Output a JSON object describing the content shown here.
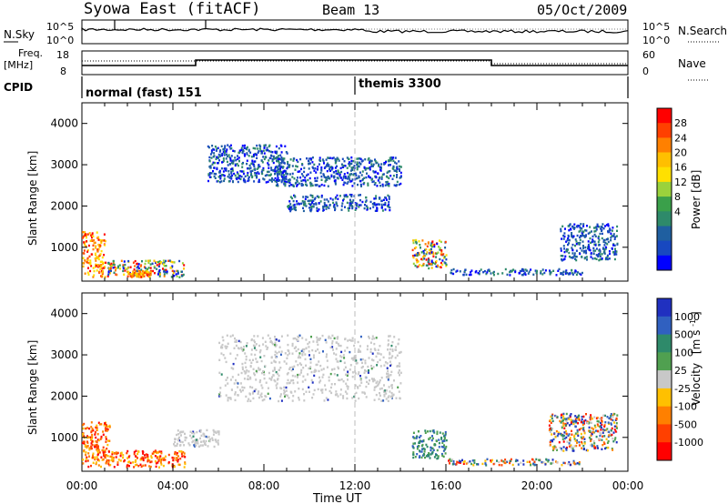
{
  "header": {
    "title": "Syowa East (fitACF)",
    "beam": "Beam 13",
    "date": "05/Oct/2009"
  },
  "noise_panel": {
    "left_label": "N.Sky",
    "right_label": "N.Search",
    "left_ticks": [
      "10^5",
      "10^0"
    ],
    "right_ticks": [
      "10^5",
      "10^0"
    ]
  },
  "freq_panel": {
    "left_label_1": "Freq.",
    "left_label_2": "[MHz]",
    "right_label": "Nave",
    "left_ticks": [
      "18",
      "8"
    ],
    "right_ticks": [
      "60",
      "0"
    ]
  },
  "cpid": {
    "label": "CPID",
    "programs": [
      {
        "name": "normal (fast) 151"
      },
      {
        "name": "themis 3300"
      }
    ]
  },
  "chart_data": [
    {
      "type": "heatmap",
      "ylabel": "Slant Range [km]",
      "xlabel": "Time UT",
      "xlim": [
        0,
        24
      ],
      "ylim": [
        180,
        4500
      ],
      "x_ticks": [
        "00:00",
        "04:00",
        "08:00",
        "12:00",
        "16:00",
        "20:00",
        "00:00"
      ],
      "y_ticks": [
        1000,
        2000,
        3000,
        4000
      ],
      "colorbar": {
        "label": "Power [dB]",
        "ticks": [
          "28",
          "24",
          "20",
          "16",
          "12",
          "8",
          "4"
        ],
        "colors": [
          "#ff0000",
          "#ff4000",
          "#ff8000",
          "#ffbf00",
          "#ffe000",
          "#9ad23c",
          "#3aa04a",
          "#2e8a6a",
          "#1f5fa0",
          "#1848c0",
          "#0000ff"
        ]
      },
      "regions": [
        {
          "t": [
            0.0,
            1.0
          ],
          "r": [
            300,
            1400
          ],
          "level": "high"
        },
        {
          "t": [
            1.0,
            4.5
          ],
          "r": [
            300,
            700
          ],
          "level": "mixed"
        },
        {
          "t": [
            2.0,
            3.0
          ],
          "r": [
            300,
            450
          ],
          "level": "high"
        },
        {
          "t": [
            5.5,
            9.0
          ],
          "r": [
            2600,
            3500
          ],
          "level": "low"
        },
        {
          "t": [
            8.5,
            14.0
          ],
          "r": [
            2500,
            3200
          ],
          "level": "low"
        },
        {
          "t": [
            9.0,
            13.5
          ],
          "r": [
            1900,
            2300
          ],
          "level": "low"
        },
        {
          "t": [
            14.5,
            16.0
          ],
          "r": [
            500,
            1200
          ],
          "level": "mixed"
        },
        {
          "t": [
            16.0,
            22.0
          ],
          "r": [
            350,
            500
          ],
          "level": "low"
        },
        {
          "t": [
            21.0,
            23.5
          ],
          "r": [
            700,
            1600
          ],
          "level": "low"
        }
      ]
    },
    {
      "type": "heatmap",
      "ylabel": "Slant Range [km]",
      "xlabel": "Time UT",
      "xlim": [
        0,
        24
      ],
      "ylim": [
        180,
        4500
      ],
      "x_ticks": [
        "00:00",
        "04:00",
        "08:00",
        "12:00",
        "16:00",
        "20:00",
        "00:00"
      ],
      "y_ticks": [
        1000,
        2000,
        3000,
        4000
      ],
      "colorbar": {
        "label": "Velocity",
        "unit": "[m s",
        "unit_sup": "-1",
        "unit_end": "]",
        "ticks": [
          "1000",
          "500",
          "100",
          "25",
          "-25",
          "-100",
          "-500",
          "-1000"
        ],
        "colors": [
          "#2030c0",
          "#3060c0",
          "#2e8a6a",
          "#50a050",
          "#c8c8c8",
          "#ffc000",
          "#ff8000",
          "#ff4000",
          "#ff0000"
        ]
      },
      "regions": [
        {
          "t": [
            0.0,
            1.2
          ],
          "r": [
            300,
            1400
          ],
          "level": "negative"
        },
        {
          "t": [
            1.2,
            4.5
          ],
          "r": [
            300,
            700
          ],
          "level": "negative"
        },
        {
          "t": [
            4.0,
            6.0
          ],
          "r": [
            800,
            1200
          ],
          "level": "ground"
        },
        {
          "t": [
            6.0,
            14.0
          ],
          "r": [
            1900,
            3500
          ],
          "level": "ground"
        },
        {
          "t": [
            14.5,
            16.0
          ],
          "r": [
            500,
            1200
          ],
          "level": "positive"
        },
        {
          "t": [
            16.0,
            22.0
          ],
          "r": [
            350,
            500
          ],
          "level": "mixed"
        },
        {
          "t": [
            20.5,
            23.5
          ],
          "r": [
            700,
            1600
          ],
          "level": "mixed"
        }
      ]
    }
  ]
}
